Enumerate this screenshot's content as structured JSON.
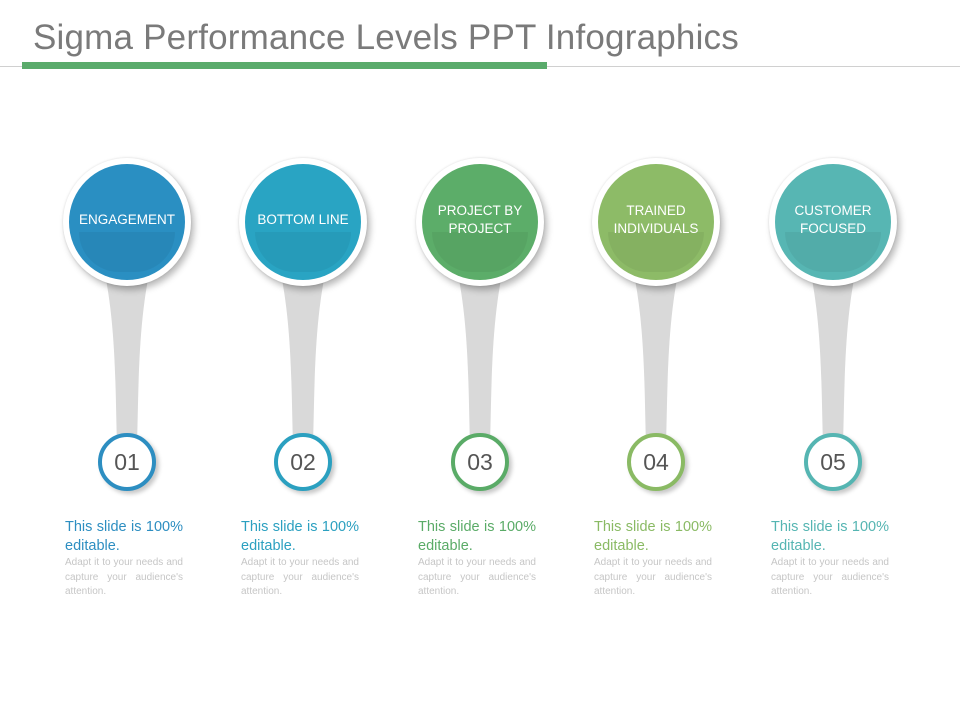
{
  "slide": {
    "title": "Sigma Performance Levels PPT Infographics"
  },
  "items": [
    {
      "label": "ENGAGEMENT",
      "number": "01",
      "color": "#2a8fc2",
      "ring": "#2d8ec1",
      "headline": "This slide is 100% editable.",
      "body": "Adapt it to your needs and capture your audience's attention."
    },
    {
      "label": "BOTTOM LINE",
      "number": "02",
      "color": "#29a4c3",
      "ring": "#2ba0c0",
      "headline": "This slide is 100% editable.",
      "body": "Adapt it to your needs and capture your audience's attention."
    },
    {
      "label": "PROJECT BY PROJECT",
      "number": "03",
      "color": "#5cad69",
      "ring": "#5aab67",
      "headline": "This slide is 100% editable.",
      "body": "Adapt it to your needs and capture your audience's attention."
    },
    {
      "label": "TRAINED INDIVIDUALS",
      "number": "04",
      "color": "#8dbb67",
      "ring": "#8aba64",
      "headline": "This slide is 100% editable.",
      "body": "Adapt it to your needs and capture your audience's attention."
    },
    {
      "label": "CUSTOMER FOCUSED",
      "number": "05",
      "color": "#57b6b3",
      "ring": "#55b5b2",
      "headline": "This slide is 100% editable.",
      "body": "Adapt it to your needs and capture your audience's attention."
    }
  ]
}
